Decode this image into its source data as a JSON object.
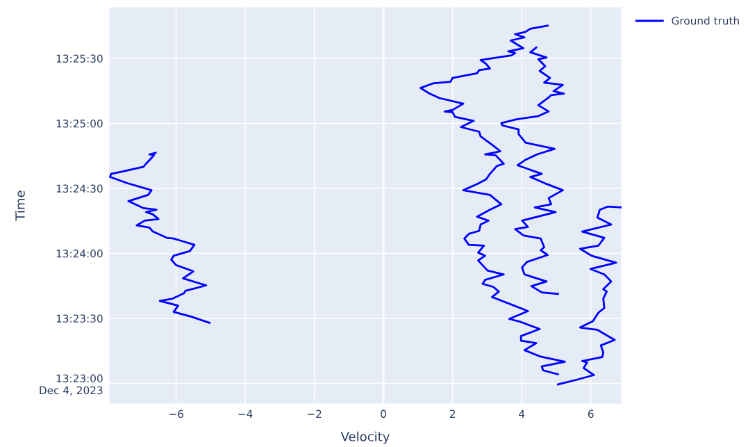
{
  "chart_data": {
    "type": "line",
    "xlabel": "Velocity",
    "ylabel": "Time",
    "xlim": [
      -7.94,
      6.89
    ],
    "xticks": [
      {
        "value": -6,
        "label": "−6"
      },
      {
        "value": -4,
        "label": "−4"
      },
      {
        "value": -2,
        "label": "−2"
      },
      0,
      2,
      4,
      6
    ],
    "ylim": [
      13.3807,
      13.4316
    ],
    "yticks": [
      {
        "value": 13.383333,
        "label": "13:23:00\nDec 4, 2023"
      },
      {
        "value": 13.391667,
        "label": "13:23:30"
      },
      {
        "value": 13.4,
        "label": "13:24:00"
      },
      {
        "value": 13.408333,
        "label": "13:24:30"
      },
      {
        "value": 13.416667,
        "label": "13:25:00"
      },
      {
        "value": 13.425,
        "label": "13:25:30"
      }
    ],
    "grid": true,
    "legend": "top right",
    "marker": "none",
    "line_style": "solid",
    "series": [
      {
        "name": "Ground truth",
        "color": "#0000ff",
        "x": [
          -5.03,
          -5.57,
          -6.07,
          -5.94,
          -6.47,
          -6.1,
          -5.77,
          -5.73,
          -5.13,
          -5.8,
          -5.5,
          -6.0,
          -6.14,
          -6.07,
          -5.6,
          -5.47,
          -6.07,
          -6.27,
          -6.67,
          -6.77,
          -7.14,
          -6.91,
          -6.51,
          -6.67,
          -6.87,
          -6.57,
          -6.94,
          -7.38,
          -6.81,
          -6.71,
          -7.41,
          -7.91,
          -7.88,
          -7.54,
          -6.94,
          -6.87,
          -6.74,
          -6.64,
          -6.77,
          -6.59,
          null,
          5.05,
          4.62,
          4.58,
          5.25,
          4.52,
          4.08,
          4.42,
          3.98,
          3.98,
          4.52,
          3.98,
          3.64,
          4.18,
          3.78,
          3.14,
          3.34,
          3.18,
          2.87,
          2.94,
          3.48,
          3.01,
          2.74,
          2.94,
          2.74,
          2.91,
          2.47,
          2.34,
          2.47,
          2.77,
          2.81,
          3.04,
          2.71,
          3.04,
          3.41,
          3.08,
          2.31,
          2.71,
          2.97,
          3.08,
          3.28,
          3.48,
          3.24,
          2.94,
          3.38,
          3.18,
          2.81,
          2.77,
          2.24,
          2.61,
          2.07,
          2.0,
          1.77,
          2.0,
          2.31,
          1.63,
          1.33,
          1.07,
          1.43,
          1.94,
          2.0,
          2.71,
          2.77,
          3.08,
          2.97,
          2.81,
          3.71,
          3.81,
          3.61,
          4.05,
          3.68,
          4.08,
          3.81,
          4.11,
          4.25,
          4.75,
          null,
          5.05,
          4.58,
          4.28,
          4.72,
          4.08,
          4.01,
          4.15,
          4.75,
          4.55,
          4.65,
          4.55,
          4.05,
          3.81,
          4.18,
          4.01,
          4.98,
          4.38,
          4.85,
          4.78,
          5.19,
          4.72,
          4.25,
          4.58,
          3.88,
          4.11,
          4.45,
          4.95,
          4.11,
          3.91,
          3.91,
          3.44,
          3.41,
          3.85,
          4.48,
          4.78,
          4.48,
          4.78,
          4.85,
          5.22,
          4.92,
          5.19,
          4.65,
          4.82,
          4.52,
          4.68,
          4.48,
          4.72,
          4.25,
          4.42,
          null,
          5.05,
          5.59,
          6.09,
          5.79,
          5.89,
          5.75,
          6.33,
          6.36,
          6.29,
          6.69,
          6.19,
          6.02,
          5.69,
          6.06,
          6.22,
          6.39,
          6.36,
          6.46,
          6.36,
          6.59,
          6.39,
          5.99,
          6.73,
          6.02,
          5.69,
          6.22,
          6.39,
          5.75,
          6.59,
          6.19,
          6.26,
          6.49,
          6.86
        ],
        "values": [
          13.3911,
          13.3919,
          13.3925,
          13.3933,
          13.3939,
          13.3942,
          13.3949,
          13.3952,
          13.3959,
          13.3968,
          13.3977,
          13.3985,
          13.3992,
          13.3997,
          13.4003,
          13.4011,
          13.4019,
          13.402,
          13.4028,
          13.4033,
          13.4036,
          13.4042,
          13.4044,
          13.405,
          13.4053,
          13.4056,
          13.4058,
          13.4067,
          13.4075,
          13.4081,
          13.409,
          13.4098,
          13.4102,
          13.4105,
          13.4111,
          13.4115,
          13.4121,
          13.4126,
          13.4127,
          13.4129,
          null,
          13.3845,
          13.385,
          13.3855,
          13.3861,
          13.3868,
          13.3876,
          13.3885,
          13.3888,
          13.3894,
          13.3903,
          13.3912,
          13.3916,
          13.3926,
          13.3933,
          13.3944,
          13.3951,
          13.3957,
          13.3961,
          13.3966,
          13.3973,
          13.3978,
          13.3991,
          13.3997,
          13.4001,
          13.401,
          13.4011,
          13.4019,
          13.4025,
          13.4029,
          13.4037,
          13.4042,
          13.4047,
          13.4055,
          13.4063,
          13.4075,
          13.4081,
          13.4089,
          13.4095,
          13.4102,
          13.4112,
          13.4115,
          13.4126,
          13.4127,
          13.4131,
          13.4138,
          13.415,
          13.4156,
          13.4162,
          13.417,
          13.4175,
          13.4181,
          13.4182,
          13.4184,
          13.4192,
          13.4199,
          13.4205,
          13.4212,
          13.4218,
          13.422,
          13.4225,
          13.4231,
          13.4235,
          13.4237,
          13.4243,
          13.4248,
          13.4254,
          13.4257,
          13.4259,
          13.4263,
          13.4273,
          13.4277,
          13.4281,
          13.4284,
          13.4288,
          13.4292,
          null,
          13.3948,
          13.395,
          13.3958,
          13.3964,
          13.3973,
          13.3982,
          13.3989,
          13.3998,
          13.4004,
          13.4008,
          13.4019,
          13.4023,
          13.4031,
          13.4034,
          13.4042,
          13.4053,
          13.4059,
          13.4063,
          13.4071,
          13.4081,
          13.4089,
          13.4098,
          13.4102,
          13.4113,
          13.412,
          13.4127,
          13.4134,
          13.4142,
          13.4153,
          13.4159,
          13.4164,
          13.4167,
          13.4172,
          13.4176,
          13.4182,
          13.419,
          13.42,
          13.4203,
          13.4205,
          13.4208,
          13.4216,
          13.4219,
          13.4225,
          13.4234,
          13.424,
          13.4249,
          13.4251,
          13.4258,
          13.4264,
          null,
          13.3832,
          13.3838,
          13.3844,
          13.3853,
          13.386,
          13.3862,
          13.3867,
          13.3873,
          13.3882,
          13.3889,
          13.3902,
          13.3903,
          13.3905,
          13.3913,
          13.3924,
          13.393,
          13.3942,
          13.3951,
          13.3954,
          13.3964,
          13.3973,
          13.398,
          13.3988,
          13.3997,
          13.4006,
          13.401,
          13.402,
          13.4028,
          13.4037,
          13.4046,
          13.4056,
          13.406,
          13.4059
        ]
      }
    ]
  }
}
